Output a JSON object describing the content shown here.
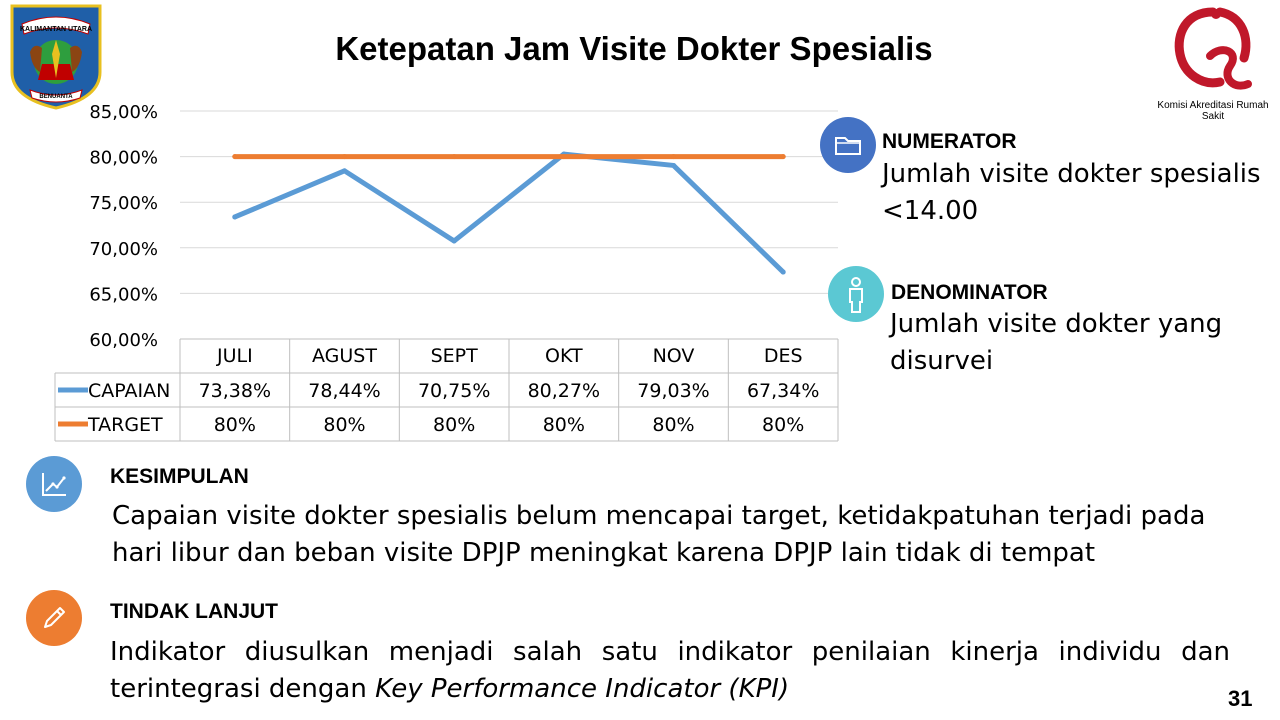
{
  "title": "Ketepatan Jam Visite Dokter Spesialis",
  "logos": {
    "left_text_top": "KALIMANTAN UTARA",
    "left_text_bottom": "BENUANTA",
    "right_caption": "Komisi Akreditasi Rumah Sakit"
  },
  "numerator": {
    "heading": "NUMERATOR",
    "body": "Jumlah visite dokter spesialis <14.00",
    "icon_color": "#4472C4"
  },
  "denominator": {
    "heading": "DENOMINATOR",
    "body": "Jumlah visite dokter yang disurvei",
    "icon_color": "#5BC8D3"
  },
  "kesimpulan": {
    "heading": "KESIMPULAN",
    "body": "Capaian visite dokter spesialis belum mencapai target,  ketidakpatuhan terjadi pada hari libur dan beban visite DPJP meningkat karena DPJP lain tidak di tempat",
    "icon_color": "#5B9BD5"
  },
  "tindak_lanjut": {
    "heading": "TINDAK LANJUT",
    "body_plain": "Indikator diusulkan menjadi salah satu indikator penilaian kinerja individu dan terintegrasi dengan ",
    "body_italic": "Key Performance Indicator (KPI)",
    "icon_color": "#ED7D31"
  },
  "page_number": "31",
  "chart_data": {
    "type": "line",
    "categories": [
      "JULI",
      "AGUST",
      "SEPT",
      "OKT",
      "NOV",
      "DES"
    ],
    "series": [
      {
        "name": "CAPAIAN",
        "values": [
          73.38,
          78.44,
          70.75,
          80.27,
          79.03,
          67.34
        ],
        "labels": [
          "73,38%",
          "78,44%",
          "70,75%",
          "80,27%",
          "79,03%",
          "67,34%"
        ],
        "color": "#5B9BD5"
      },
      {
        "name": "TARGET",
        "values": [
          80,
          80,
          80,
          80,
          80,
          80
        ],
        "labels": [
          "80%",
          "80%",
          "80%",
          "80%",
          "80%",
          "80%"
        ],
        "color": "#ED7D31"
      }
    ],
    "ylim": [
      60,
      85
    ],
    "yticks": [
      "60,00%",
      "65,00%",
      "70,00%",
      "75,00%",
      "80,00%",
      "85,00%"
    ],
    "ytick_values": [
      60,
      65,
      70,
      75,
      80,
      85
    ],
    "grid": true,
    "legend": "data table below chart"
  }
}
